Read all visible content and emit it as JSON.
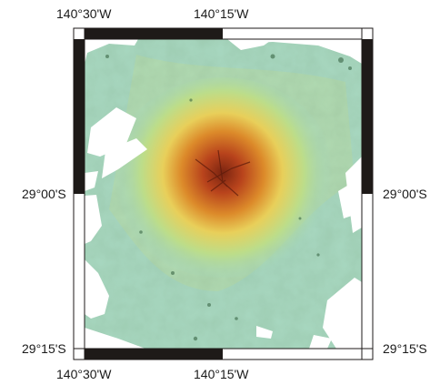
{
  "map": {
    "labels": {
      "top_left_lon": "140°30'W",
      "top_mid_lon": "140°15'W",
      "bottom_left_lon": "140°30'W",
      "bottom_mid_lon": "140°15'W",
      "left_mid_lat": "29°00'S",
      "right_mid_lat": "29°00'S",
      "left_bottom_lat": "29°15'S",
      "right_bottom_lat": "29°15'S"
    },
    "colors": {
      "low": "#9fd4bf",
      "mid": "#e8d35a",
      "high": "#c8501f",
      "peak": "#7a2410",
      "nodata": "#ffffff",
      "frame_dark": "#1e1a18"
    }
  }
}
